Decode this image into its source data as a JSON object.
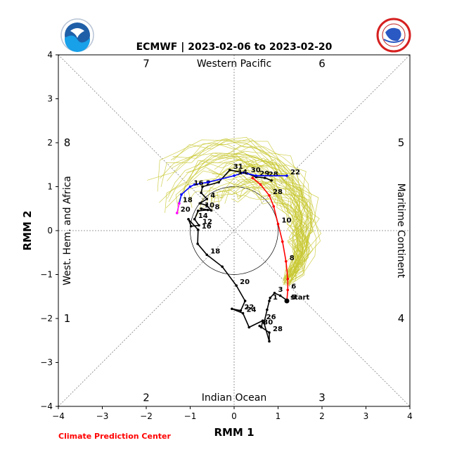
{
  "chart_data": {
    "type": "line",
    "title": "ECMWF | 2023-02-06 to 2023-02-20",
    "xlabel": "RMM 1",
    "ylabel": "RMM 2",
    "xlim": [
      -4,
      4
    ],
    "ylim": [
      -4,
      4
    ],
    "xticks": [
      "−4",
      "−3",
      "−2",
      "−1",
      "0",
      "1",
      "2",
      "3",
      "4"
    ],
    "yticks": [
      "−4",
      "−3",
      "−2",
      "−1",
      "0",
      "1",
      "2",
      "3",
      "4"
    ],
    "region_labels": {
      "top": "Western Pacific",
      "bottom": "Indian Ocean",
      "left": "West. Hem. and Africa",
      "right": "Maritime Continent"
    },
    "phase_labels": [
      {
        "text": "7",
        "x": -2.0,
        "y": 3.8
      },
      {
        "text": "6",
        "x": 2.0,
        "y": 3.8
      },
      {
        "text": "8",
        "x": -3.8,
        "y": 2.0
      },
      {
        "text": "5",
        "x": 3.8,
        "y": 2.0
      },
      {
        "text": "1",
        "x": -3.8,
        "y": -2.0
      },
      {
        "text": "4",
        "x": 3.8,
        "y": -2.0
      },
      {
        "text": "2",
        "x": -2.0,
        "y": -3.8
      },
      {
        "text": "3",
        "x": 2.0,
        "y": -3.8
      }
    ],
    "unit_circle_radius": 1,
    "series": [
      {
        "color": "#000000",
        "points": [
          {
            "x": 0.85,
            "y": 1.14,
            "label": ""
          },
          {
            "x": 0.7,
            "y": 1.2,
            "label": "28"
          },
          {
            "x": 0.5,
            "y": 1.22,
            "label": "29"
          },
          {
            "x": 0.3,
            "y": 1.3,
            "label": "30"
          },
          {
            "x": -0.1,
            "y": 1.38,
            "label": "31"
          },
          {
            "x": -0.35,
            "y": 1.1,
            "label": ""
          },
          {
            "x": -0.72,
            "y": 1.0,
            "label": "2"
          },
          {
            "x": -0.75,
            "y": 0.86,
            "label": ""
          },
          {
            "x": -0.62,
            "y": 0.72,
            "label": "4"
          },
          {
            "x": -0.78,
            "y": 0.62,
            "label": ""
          },
          {
            "x": -0.63,
            "y": 0.58,
            "label": ""
          },
          {
            "x": -0.52,
            "y": 0.46,
            "label": "8"
          },
          {
            "x": -0.75,
            "y": 0.5,
            "label": "10"
          },
          {
            "x": -0.6,
            "y": 0.47,
            "label": ""
          },
          {
            "x": -0.82,
            "y": 0.45,
            "label": ""
          },
          {
            "x": -0.9,
            "y": 0.26,
            "label": "14"
          },
          {
            "x": -0.8,
            "y": 0.12,
            "label": "12"
          },
          {
            "x": -0.98,
            "y": 0.1,
            "label": ""
          },
          {
            "x": -1.04,
            "y": 0.26,
            "label": ""
          },
          {
            "x": -0.82,
            "y": 0.02,
            "label": "16"
          },
          {
            "x": -0.83,
            "y": -0.3,
            "label": ""
          },
          {
            "x": -0.62,
            "y": -0.55,
            "label": "18"
          },
          {
            "x": -0.27,
            "y": -0.82,
            "label": ""
          },
          {
            "x": 0.05,
            "y": -1.25,
            "label": "20"
          },
          {
            "x": 0.25,
            "y": -1.6,
            "label": ""
          },
          {
            "x": 0.15,
            "y": -1.82,
            "label": "22"
          },
          {
            "x": -0.05,
            "y": -1.78,
            "label": ""
          },
          {
            "x": 0.2,
            "y": -1.88,
            "label": "24"
          },
          {
            "x": 0.34,
            "y": -2.2,
            "label": ""
          },
          {
            "x": 0.65,
            "y": -2.05,
            "label": "26"
          },
          {
            "x": 0.62,
            "y": -2.2,
            "label": ""
          },
          {
            "x": 0.58,
            "y": -2.17,
            "label": "30"
          },
          {
            "x": 0.8,
            "y": -2.32,
            "label": "28"
          },
          {
            "x": 0.8,
            "y": -2.52,
            "label": ""
          },
          {
            "x": 0.68,
            "y": -2.1,
            "label": ""
          },
          {
            "x": 0.75,
            "y": -1.8,
            "label": ""
          },
          {
            "x": 0.8,
            "y": -1.6,
            "label": "1"
          },
          {
            "x": 0.82,
            "y": -1.53,
            "label": ""
          },
          {
            "x": 0.92,
            "y": -1.42,
            "label": "3"
          },
          {
            "x": 1.05,
            "y": -1.48,
            "label": ""
          },
          {
            "x": 1.22,
            "y": -1.6,
            "label": "5"
          }
        ]
      },
      {
        "color": "#0000ff",
        "points": [
          {
            "x": 1.2,
            "y": 1.25,
            "label": "22"
          },
          {
            "x": 0.5,
            "y": 1.25,
            "label": ""
          },
          {
            "x": 0.22,
            "y": 1.32,
            "label": ""
          },
          {
            "x": 0.0,
            "y": 1.25,
            "label": "14"
          },
          {
            "x": -0.6,
            "y": 1.1,
            "label": ""
          },
          {
            "x": -0.9,
            "y": 1.05,
            "label": ""
          },
          {
            "x": -1.0,
            "y": 1.0,
            "label": "16"
          },
          {
            "x": -1.2,
            "y": 0.82,
            "label": ""
          },
          {
            "x": -1.25,
            "y": 0.62,
            "label": "18"
          }
        ]
      },
      {
        "color": "#ff00ff",
        "points": [
          {
            "x": -1.25,
            "y": 0.62,
            "label": ""
          },
          {
            "x": -1.3,
            "y": 0.4,
            "label": "20"
          }
        ]
      },
      {
        "color": "#ff0000",
        "points": [
          {
            "x": 1.2,
            "y": -1.6,
            "label": "start"
          },
          {
            "x": 1.22,
            "y": -1.35,
            "label": "6"
          },
          {
            "x": 1.22,
            "y": -1.1,
            "label": ""
          },
          {
            "x": 1.18,
            "y": -0.7,
            "label": "8"
          },
          {
            "x": 1.1,
            "y": -0.25,
            "label": ""
          },
          {
            "x": 1.0,
            "y": 0.15,
            "label": "10"
          },
          {
            "x": 0.9,
            "y": 0.55,
            "label": ""
          },
          {
            "x": 0.8,
            "y": 0.8,
            "label": "28"
          },
          {
            "x": 0.6,
            "y": 1.05,
            "label": ""
          },
          {
            "x": 0.42,
            "y": 1.2,
            "label": ""
          }
        ]
      }
    ],
    "ensemble_color": "#c8c832",
    "grid": false
  },
  "footer_text": "Climate Prediction Center",
  "logos": {
    "left": "NOAA",
    "right": "NATIONAL WEATHER SERVICE"
  }
}
